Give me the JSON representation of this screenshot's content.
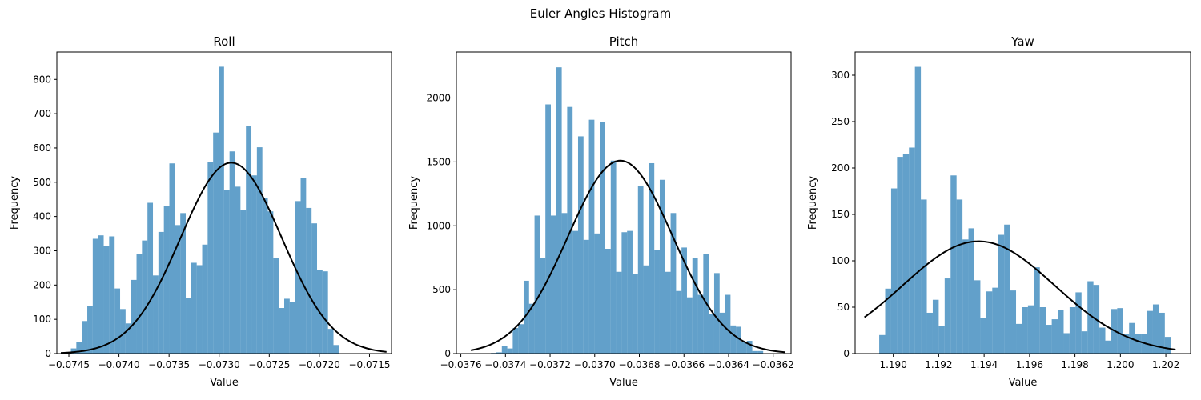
{
  "figure": {
    "title": "Euler Angles Histogram"
  },
  "colors": {
    "bar": "#1f77b4",
    "curve": "#000000",
    "axis": "#000000",
    "background": "#ffffff"
  },
  "chart_data": [
    {
      "type": "histogram",
      "title": "Roll",
      "xlabel": "Value",
      "ylabel": "Frequency",
      "xlim": [
        -0.07462,
        -0.07128
      ],
      "ylim": [
        0,
        880
      ],
      "xticks": [
        -0.0745,
        -0.074,
        -0.0735,
        -0.073,
        -0.0725,
        -0.072,
        -0.0715
      ],
      "xtick_labels": [
        "−0.0745",
        "−0.0740",
        "−0.0735",
        "−0.0730",
        "−0.0725",
        "−0.0720",
        "−0.0715"
      ],
      "yticks": [
        0,
        100,
        200,
        300,
        400,
        500,
        600,
        700,
        800
      ],
      "ytick_labels": [
        "0",
        "100",
        "200",
        "300",
        "400",
        "500",
        "600",
        "700",
        "800"
      ],
      "bin_start": -0.07448,
      "bin_width": 5.46e-05,
      "counts": [
        15,
        35,
        95,
        140,
        335,
        345,
        315,
        342,
        190,
        130,
        88,
        215,
        290,
        330,
        440,
        228,
        355,
        430,
        555,
        375,
        410,
        162,
        265,
        258,
        318,
        560,
        645,
        837,
        478,
        590,
        487,
        420,
        665,
        520,
        602,
        455,
        415,
        280,
        133,
        160,
        150,
        445,
        512,
        425,
        380,
        245,
        240,
        72,
        25
      ],
      "fit_curve": {
        "mean": -0.07288,
        "std": 0.000505,
        "peak": 557,
        "x_range": [
          -0.07458,
          -0.07133
        ]
      },
      "grid": false,
      "legend": "none"
    },
    {
      "type": "histogram",
      "title": "Pitch",
      "xlabel": "Value",
      "ylabel": "Frequency",
      "xlim": [
        -0.03762,
        -0.03612
      ],
      "ylim": [
        0,
        2360
      ],
      "xticks": [
        -0.0376,
        -0.0374,
        -0.0372,
        -0.037,
        -0.0368,
        -0.0366,
        -0.0364,
        -0.0362
      ],
      "xtick_labels": [
        "−0.0376",
        "−0.0374",
        "−0.0372",
        "−0.0370",
        "−0.0368",
        "−0.0366",
        "−0.0364",
        "−0.0362"
      ],
      "yticks": [
        0,
        500,
        1000,
        1500,
        2000
      ],
      "ytick_labels": [
        "0",
        "500",
        "1000",
        "1500",
        "2000"
      ],
      "bin_start": -0.037465,
      "bin_width": 2.44e-05,
      "counts": [
        5,
        10,
        60,
        40,
        200,
        230,
        570,
        390,
        1080,
        750,
        1950,
        1080,
        2240,
        1100,
        1930,
        960,
        1700,
        890,
        1830,
        940,
        1810,
        820,
        1510,
        640,
        950,
        960,
        620,
        1310,
        690,
        1490,
        810,
        1360,
        640,
        1100,
        490,
        830,
        440,
        750,
        460,
        780,
        310,
        630,
        320,
        460,
        220,
        210,
        90,
        100,
        20,
        20
      ],
      "fit_curve": {
        "mean": -0.036885,
        "std": 0.000235,
        "peak": 1510,
        "x_range": [
          -0.037555,
          -0.036147
        ]
      },
      "grid": false,
      "legend": "none"
    },
    {
      "type": "histogram",
      "title": "Yaw",
      "xlabel": "Value",
      "ylabel": "Frequency",
      "xlim": [
        1.18832,
        1.20309
      ],
      "ylim": [
        0,
        325
      ],
      "xticks": [
        1.19,
        1.192,
        1.194,
        1.196,
        1.198,
        1.2,
        1.202
      ],
      "xtick_labels": [
        "1.190",
        "1.192",
        "1.194",
        "1.196",
        "1.198",
        "1.200",
        "1.202"
      ],
      "yticks": [
        0,
        50,
        100,
        150,
        200,
        250,
        300
      ],
      "ytick_labels": [
        "0",
        "50",
        "100",
        "150",
        "200",
        "250",
        "300"
      ],
      "bin_start": 1.18938,
      "bin_width": 0.000262,
      "counts": [
        20,
        70,
        178,
        212,
        215,
        222,
        309,
        166,
        44,
        58,
        30,
        81,
        192,
        166,
        123,
        135,
        79,
        38,
        67,
        71,
        128,
        139,
        68,
        32,
        50,
        52,
        93,
        50,
        31,
        37,
        47,
        22,
        50,
        66,
        24,
        78,
        74,
        28,
        14,
        48,
        49,
        21,
        33,
        21,
        21,
        46,
        53,
        44,
        18
      ],
      "fit_curve": {
        "mean": 1.19376,
        "std": 0.00335,
        "peak": 121,
        "x_range": [
          1.18873,
          1.20243
        ]
      },
      "grid": false,
      "legend": "none"
    }
  ]
}
